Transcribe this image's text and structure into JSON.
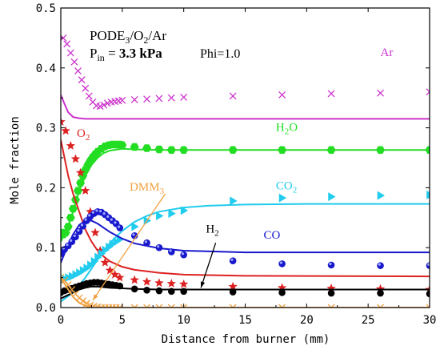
{
  "chart_data": {
    "type": "line",
    "xlabel": "Distance from burner (mm)",
    "ylabel": "Mole fraction",
    "xlim": [
      0,
      30
    ],
    "ylim": [
      0,
      0.5
    ],
    "xticks": [
      "0",
      "5",
      "10",
      "15",
      "20",
      "25",
      "30"
    ],
    "yticks": [
      "0.0",
      "0.1",
      "0.2",
      "0.3",
      "0.4",
      "0.5"
    ],
    "grid": false,
    "info": {
      "mixture": [
        "PODE",
        "3",
        "/O",
        "2",
        "/Ar"
      ],
      "pressure": [
        "P",
        "in",
        " = ",
        "3.3 kPa"
      ],
      "phi": "Phi=1.0"
    },
    "series": [
      {
        "name": "Ar",
        "label": [
          "Ar",
          ""
        ],
        "color": "#cc33cc",
        "marker": "x",
        "line_x": [
          0,
          0.3,
          0.6,
          1.0,
          1.5,
          2.0,
          3.0,
          4.0,
          6.0,
          10.0,
          30.0
        ],
        "line_y": [
          0.355,
          0.34,
          0.326,
          0.318,
          0.316,
          0.315,
          0.315,
          0.315,
          0.315,
          0.315,
          0.315
        ],
        "points_x": [
          0.2,
          0.5,
          0.8,
          1.1,
          1.4,
          1.7,
          2.0,
          2.3,
          2.6,
          2.9,
          3.2,
          3.5,
          3.8,
          4.1,
          4.4,
          4.7,
          5.0,
          6.0,
          7.0,
          8.0,
          9.0,
          10.0,
          14.0,
          18.0,
          22.0,
          26.0,
          30.0
        ],
        "points_y": [
          0.45,
          0.44,
          0.425,
          0.41,
          0.395,
          0.38,
          0.366,
          0.353,
          0.343,
          0.337,
          0.336,
          0.338,
          0.341,
          0.343,
          0.344,
          0.345,
          0.346,
          0.347,
          0.348,
          0.349,
          0.35,
          0.351,
          0.353,
          0.355,
          0.357,
          0.358,
          0.36
        ]
      },
      {
        "name": "H2O",
        "label": [
          "H",
          "2",
          "O"
        ],
        "color": "#22dd22",
        "marker": "hexagon",
        "line_x": [
          0,
          0.5,
          1.0,
          1.5,
          2.0,
          2.5,
          3.0,
          3.5,
          4.0,
          5.0,
          6.0,
          8.0,
          10.0,
          30.0
        ],
        "line_y": [
          0.11,
          0.13,
          0.16,
          0.195,
          0.22,
          0.238,
          0.25,
          0.258,
          0.262,
          0.265,
          0.264,
          0.263,
          0.263,
          0.263
        ],
        "points_x": [
          0,
          0.2,
          0.4,
          0.6,
          0.8,
          1.0,
          1.2,
          1.4,
          1.6,
          1.8,
          2.0,
          2.2,
          2.4,
          2.6,
          2.8,
          3.0,
          3.3,
          3.6,
          3.9,
          4.2,
          4.5,
          4.8,
          5.0,
          6.0,
          7.0,
          8.0,
          9.0,
          10.0,
          14.0,
          18.0,
          22.0,
          26.0,
          30.0
        ],
        "points_y": [
          0.125,
          0.122,
          0.125,
          0.135,
          0.15,
          0.165,
          0.18,
          0.195,
          0.208,
          0.22,
          0.23,
          0.238,
          0.245,
          0.251,
          0.256,
          0.26,
          0.265,
          0.269,
          0.271,
          0.272,
          0.272,
          0.272,
          0.271,
          0.268,
          0.266,
          0.264,
          0.263,
          0.263,
          0.263,
          0.263,
          0.263,
          0.263,
          0.263
        ]
      },
      {
        "name": "O2",
        "label": [
          "O",
          "2",
          ""
        ],
        "color": "#dd2222",
        "marker": "star",
        "line_x": [
          0,
          0.3,
          0.6,
          1.0,
          1.5,
          2.0,
          2.5,
          3.0,
          3.5,
          4.0,
          5.0,
          6.0,
          8.0,
          10.0,
          15.0,
          30.0
        ],
        "line_y": [
          0.28,
          0.25,
          0.22,
          0.19,
          0.16,
          0.13,
          0.11,
          0.095,
          0.085,
          0.077,
          0.068,
          0.063,
          0.058,
          0.055,
          0.053,
          0.052
        ],
        "points_x": [
          0,
          0.4,
          0.8,
          1.2,
          1.6,
          2.0,
          2.4,
          2.8,
          3.2,
          3.6,
          4.0,
          4.4,
          4.8,
          6.0,
          7.0,
          8.0,
          9.0,
          10.0,
          14.0,
          18.0,
          22.0,
          26.0,
          30.0
        ],
        "points_y": [
          0.31,
          0.295,
          0.27,
          0.248,
          0.225,
          0.195,
          0.16,
          0.125,
          0.095,
          0.075,
          0.062,
          0.055,
          0.05,
          0.046,
          0.043,
          0.041,
          0.04,
          0.039,
          0.035,
          0.033,
          0.032,
          0.031,
          0.03
        ]
      },
      {
        "name": "CO2",
        "label": [
          "CO",
          "2",
          ""
        ],
        "color": "#22ccee",
        "marker": "triangle-right",
        "line_x": [
          0,
          1.0,
          2.0,
          3.0,
          4.0,
          5.0,
          6.0,
          7.0,
          8.0,
          10.0,
          12.0,
          15.0,
          20.0,
          30.0
        ],
        "line_y": [
          0.01,
          0.025,
          0.05,
          0.08,
          0.108,
          0.128,
          0.143,
          0.153,
          0.16,
          0.167,
          0.17,
          0.172,
          0.173,
          0.173
        ],
        "points_x": [
          0,
          0.3,
          0.6,
          0.9,
          1.2,
          1.5,
          1.8,
          2.1,
          2.4,
          2.7,
          3.0,
          3.3,
          3.6,
          3.9,
          4.2,
          4.5,
          4.8,
          6.0,
          7.0,
          8.0,
          9.0,
          10.0,
          14.0,
          18.0,
          22.0,
          26.0,
          30.0
        ],
        "points_y": [
          0.045,
          0.048,
          0.05,
          0.052,
          0.055,
          0.058,
          0.062,
          0.066,
          0.071,
          0.077,
          0.084,
          0.09,
          0.096,
          0.101,
          0.106,
          0.11,
          0.114,
          0.135,
          0.145,
          0.153,
          0.157,
          0.162,
          0.178,
          0.183,
          0.185,
          0.187,
          0.188
        ]
      },
      {
        "name": "CO",
        "label": [
          "CO",
          ""
        ],
        "color": "#1818cc",
        "marker": "circle",
        "line_x": [
          0,
          0.5,
          1.0,
          1.5,
          2.0,
          2.5,
          3.0,
          3.5,
          4.0,
          5.0,
          6.0,
          8.0,
          10.0,
          15.0,
          20.0,
          30.0
        ],
        "line_y": [
          0.075,
          0.1,
          0.122,
          0.138,
          0.145,
          0.145,
          0.14,
          0.133,
          0.126,
          0.115,
          0.107,
          0.099,
          0.095,
          0.092,
          0.092,
          0.092
        ],
        "points_x": [
          0,
          0.3,
          0.6,
          0.9,
          1.2,
          1.5,
          1.8,
          2.1,
          2.4,
          2.7,
          3.0,
          3.3,
          3.6,
          3.9,
          4.2,
          4.5,
          4.8,
          6.0,
          7.0,
          8.0,
          9.0,
          10.0,
          14.0,
          18.0,
          22.0,
          26.0,
          30.0
        ],
        "points_y": [
          0.09,
          0.097,
          0.103,
          0.11,
          0.118,
          0.127,
          0.136,
          0.145,
          0.152,
          0.157,
          0.16,
          0.159,
          0.155,
          0.15,
          0.145,
          0.14,
          0.133,
          0.12,
          0.108,
          0.1,
          0.093,
          0.088,
          0.078,
          0.073,
          0.071,
          0.07,
          0.07
        ]
      },
      {
        "name": "H2",
        "label": [
          "H",
          "2",
          ""
        ],
        "color": "#000000",
        "marker": "circle",
        "line_x": [
          0,
          0.5,
          1.0,
          1.5,
          2.0,
          2.5,
          3.0,
          3.5,
          4.0,
          5.0,
          6.0,
          8.0,
          10.0,
          15.0,
          30.0
        ],
        "line_y": [
          0.015,
          0.02,
          0.025,
          0.03,
          0.033,
          0.035,
          0.035,
          0.034,
          0.033,
          0.032,
          0.031,
          0.03,
          0.03,
          0.03,
          0.03
        ],
        "points_x": [
          0,
          0.3,
          0.6,
          0.9,
          1.2,
          1.5,
          1.8,
          2.1,
          2.4,
          2.7,
          3.0,
          3.3,
          3.6,
          3.9,
          4.2,
          4.5,
          4.8,
          6.0,
          7.0,
          8.0,
          9.0,
          10.0,
          14.0,
          18.0,
          22.0,
          26.0,
          30.0
        ],
        "points_y": [
          0.025,
          0.028,
          0.03,
          0.032,
          0.034,
          0.036,
          0.038,
          0.04,
          0.041,
          0.042,
          0.042,
          0.041,
          0.04,
          0.039,
          0.038,
          0.037,
          0.036,
          0.031,
          0.029,
          0.028,
          0.027,
          0.027,
          0.026,
          0.025,
          0.024,
          0.024,
          0.023
        ]
      },
      {
        "name": "DMM3",
        "label": [
          "DMM",
          "3",
          ""
        ],
        "color": "#f0a040",
        "marker": "x",
        "line_x": [
          0,
          0.3,
          0.6,
          1.0,
          1.5,
          2.0,
          2.5,
          3.0,
          4.0,
          30.0
        ],
        "line_y": [
          0.048,
          0.04,
          0.03,
          0.018,
          0.008,
          0.003,
          0.001,
          0.0,
          0.0,
          0.0
        ],
        "points_x": [
          0,
          0.3,
          0.6,
          0.9,
          1.2,
          1.5,
          1.8,
          2.1,
          2.4,
          2.7,
          3.0,
          3.3,
          3.6,
          3.9,
          4.2,
          4.5,
          4.8,
          6.0,
          7.0,
          8.0,
          9.0,
          10.0,
          14.0,
          18.0,
          22.0,
          26.0,
          30.0
        ],
        "points_y": [
          0.05,
          0.045,
          0.038,
          0.03,
          0.023,
          0.016,
          0.011,
          0.007,
          0.004,
          0.002,
          0.001,
          0.0,
          0.0,
          0.0,
          0.0,
          0.0,
          0.0,
          0.0,
          0.0,
          0.0,
          0.0,
          0.0,
          0.0,
          0.0,
          0.0,
          0.0,
          0.0
        ]
      }
    ]
  }
}
